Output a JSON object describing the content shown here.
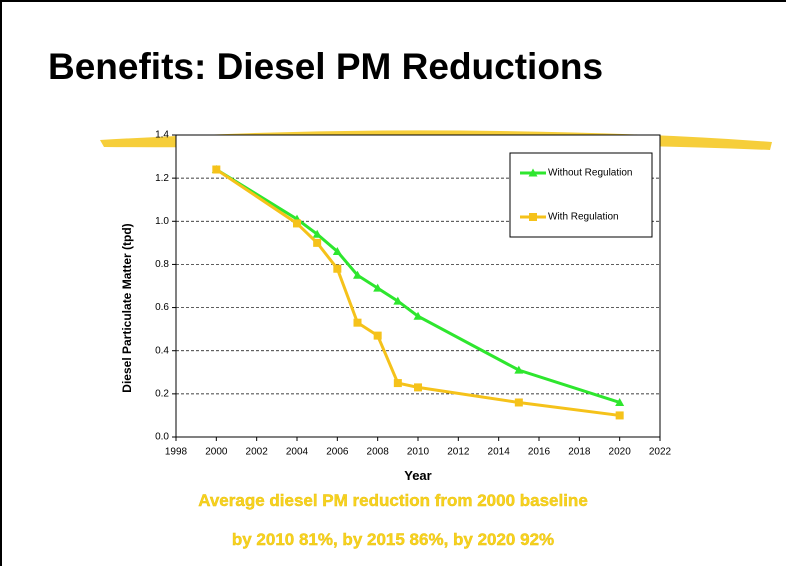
{
  "chart_data": {
    "type": "line",
    "title": "Benefits: Diesel PM Reductions",
    "x_label": "Year",
    "y_label": "Diesel Particulate Matter (tpd)",
    "x": [
      2000,
      2004,
      2005,
      2006,
      2007,
      2008,
      2009,
      2010,
      2015,
      2020
    ],
    "series": [
      {
        "name": "Without Regulation",
        "color": "#2ee62e",
        "marker": "triangle",
        "values": [
          1.24,
          1.01,
          0.94,
          0.86,
          0.75,
          0.69,
          0.63,
          0.56,
          0.31,
          0.16
        ]
      },
      {
        "name": "With Regulation",
        "color": "#f5c21a",
        "marker": "square",
        "values": [
          1.24,
          0.99,
          0.9,
          0.78,
          0.53,
          0.47,
          0.25,
          0.23,
          0.16,
          0.1
        ]
      }
    ],
    "xlim": [
      1998,
      2022
    ],
    "xticks": [
      1998,
      2000,
      2002,
      2004,
      2006,
      2008,
      2010,
      2012,
      2014,
      2016,
      2018,
      2020,
      2022
    ],
    "ylim": [
      0,
      1.4
    ],
    "yticks": [
      {
        "value": 0,
        "label": "0.0"
      },
      0.2,
      0.4,
      0.6,
      0.8,
      {
        "value": 1,
        "label": "1.0"
      },
      1.2,
      1.4
    ],
    "grid": true,
    "legend": "top-right",
    "notes": [
      "Average diesel PM reduction from 2000 baseline",
      "by 2010 81%, by 2015 86%, by 2020 92%"
    ]
  }
}
